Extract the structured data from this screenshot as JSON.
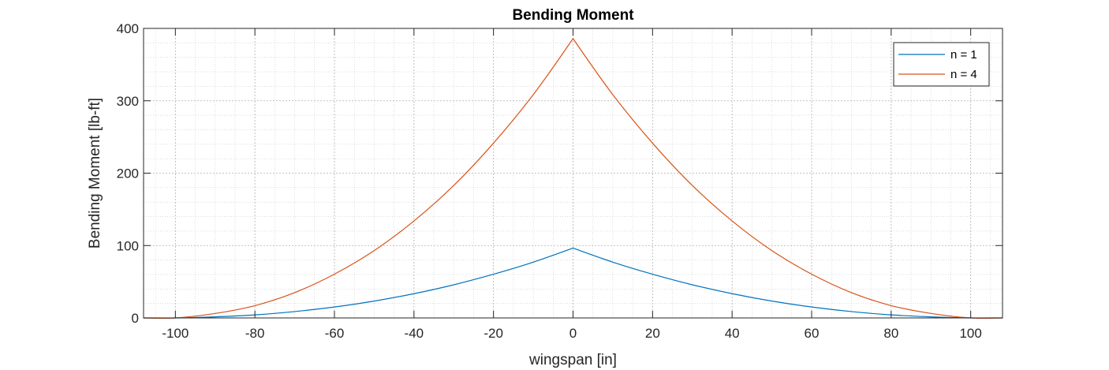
{
  "chart_data": {
    "type": "line",
    "title": "Bending Moment",
    "xlabel": "wingspan [in]",
    "ylabel": "Bending Moment [lb-ft]",
    "xlim": [
      -108,
      108
    ],
    "ylim": [
      0,
      400
    ],
    "xticks": [
      -100,
      -80,
      -60,
      -40,
      -20,
      0,
      20,
      40,
      60,
      80,
      100
    ],
    "yticks": [
      0,
      100,
      200,
      300,
      400
    ],
    "grid": true,
    "minor_grid": true,
    "legend_location": "top-right",
    "x": [
      -108,
      -100,
      -90,
      -80,
      -70,
      -60,
      -50,
      -40,
      -30,
      -20,
      -10,
      0,
      10,
      20,
      30,
      40,
      50,
      60,
      70,
      80,
      90,
      100,
      108
    ],
    "series": [
      {
        "name": "n = 1",
        "color": "#0072BD",
        "values": [
          0,
          0,
          1.5,
          4.2,
          8.8,
          15.1,
          23.3,
          33.5,
          45.8,
          60.4,
          77.1,
          96.5,
          77.1,
          60.4,
          45.8,
          33.5,
          23.3,
          15.1,
          8.8,
          4.2,
          1.5,
          0,
          0
        ]
      },
      {
        "name": "n = 4",
        "color": "#D95319",
        "values": [
          0,
          0,
          6.2,
          17,
          35,
          60.5,
          93,
          134,
          183,
          241.5,
          308.5,
          386,
          308.5,
          241.5,
          183,
          134,
          93,
          60.5,
          35,
          17,
          6.2,
          0,
          0
        ]
      }
    ]
  }
}
